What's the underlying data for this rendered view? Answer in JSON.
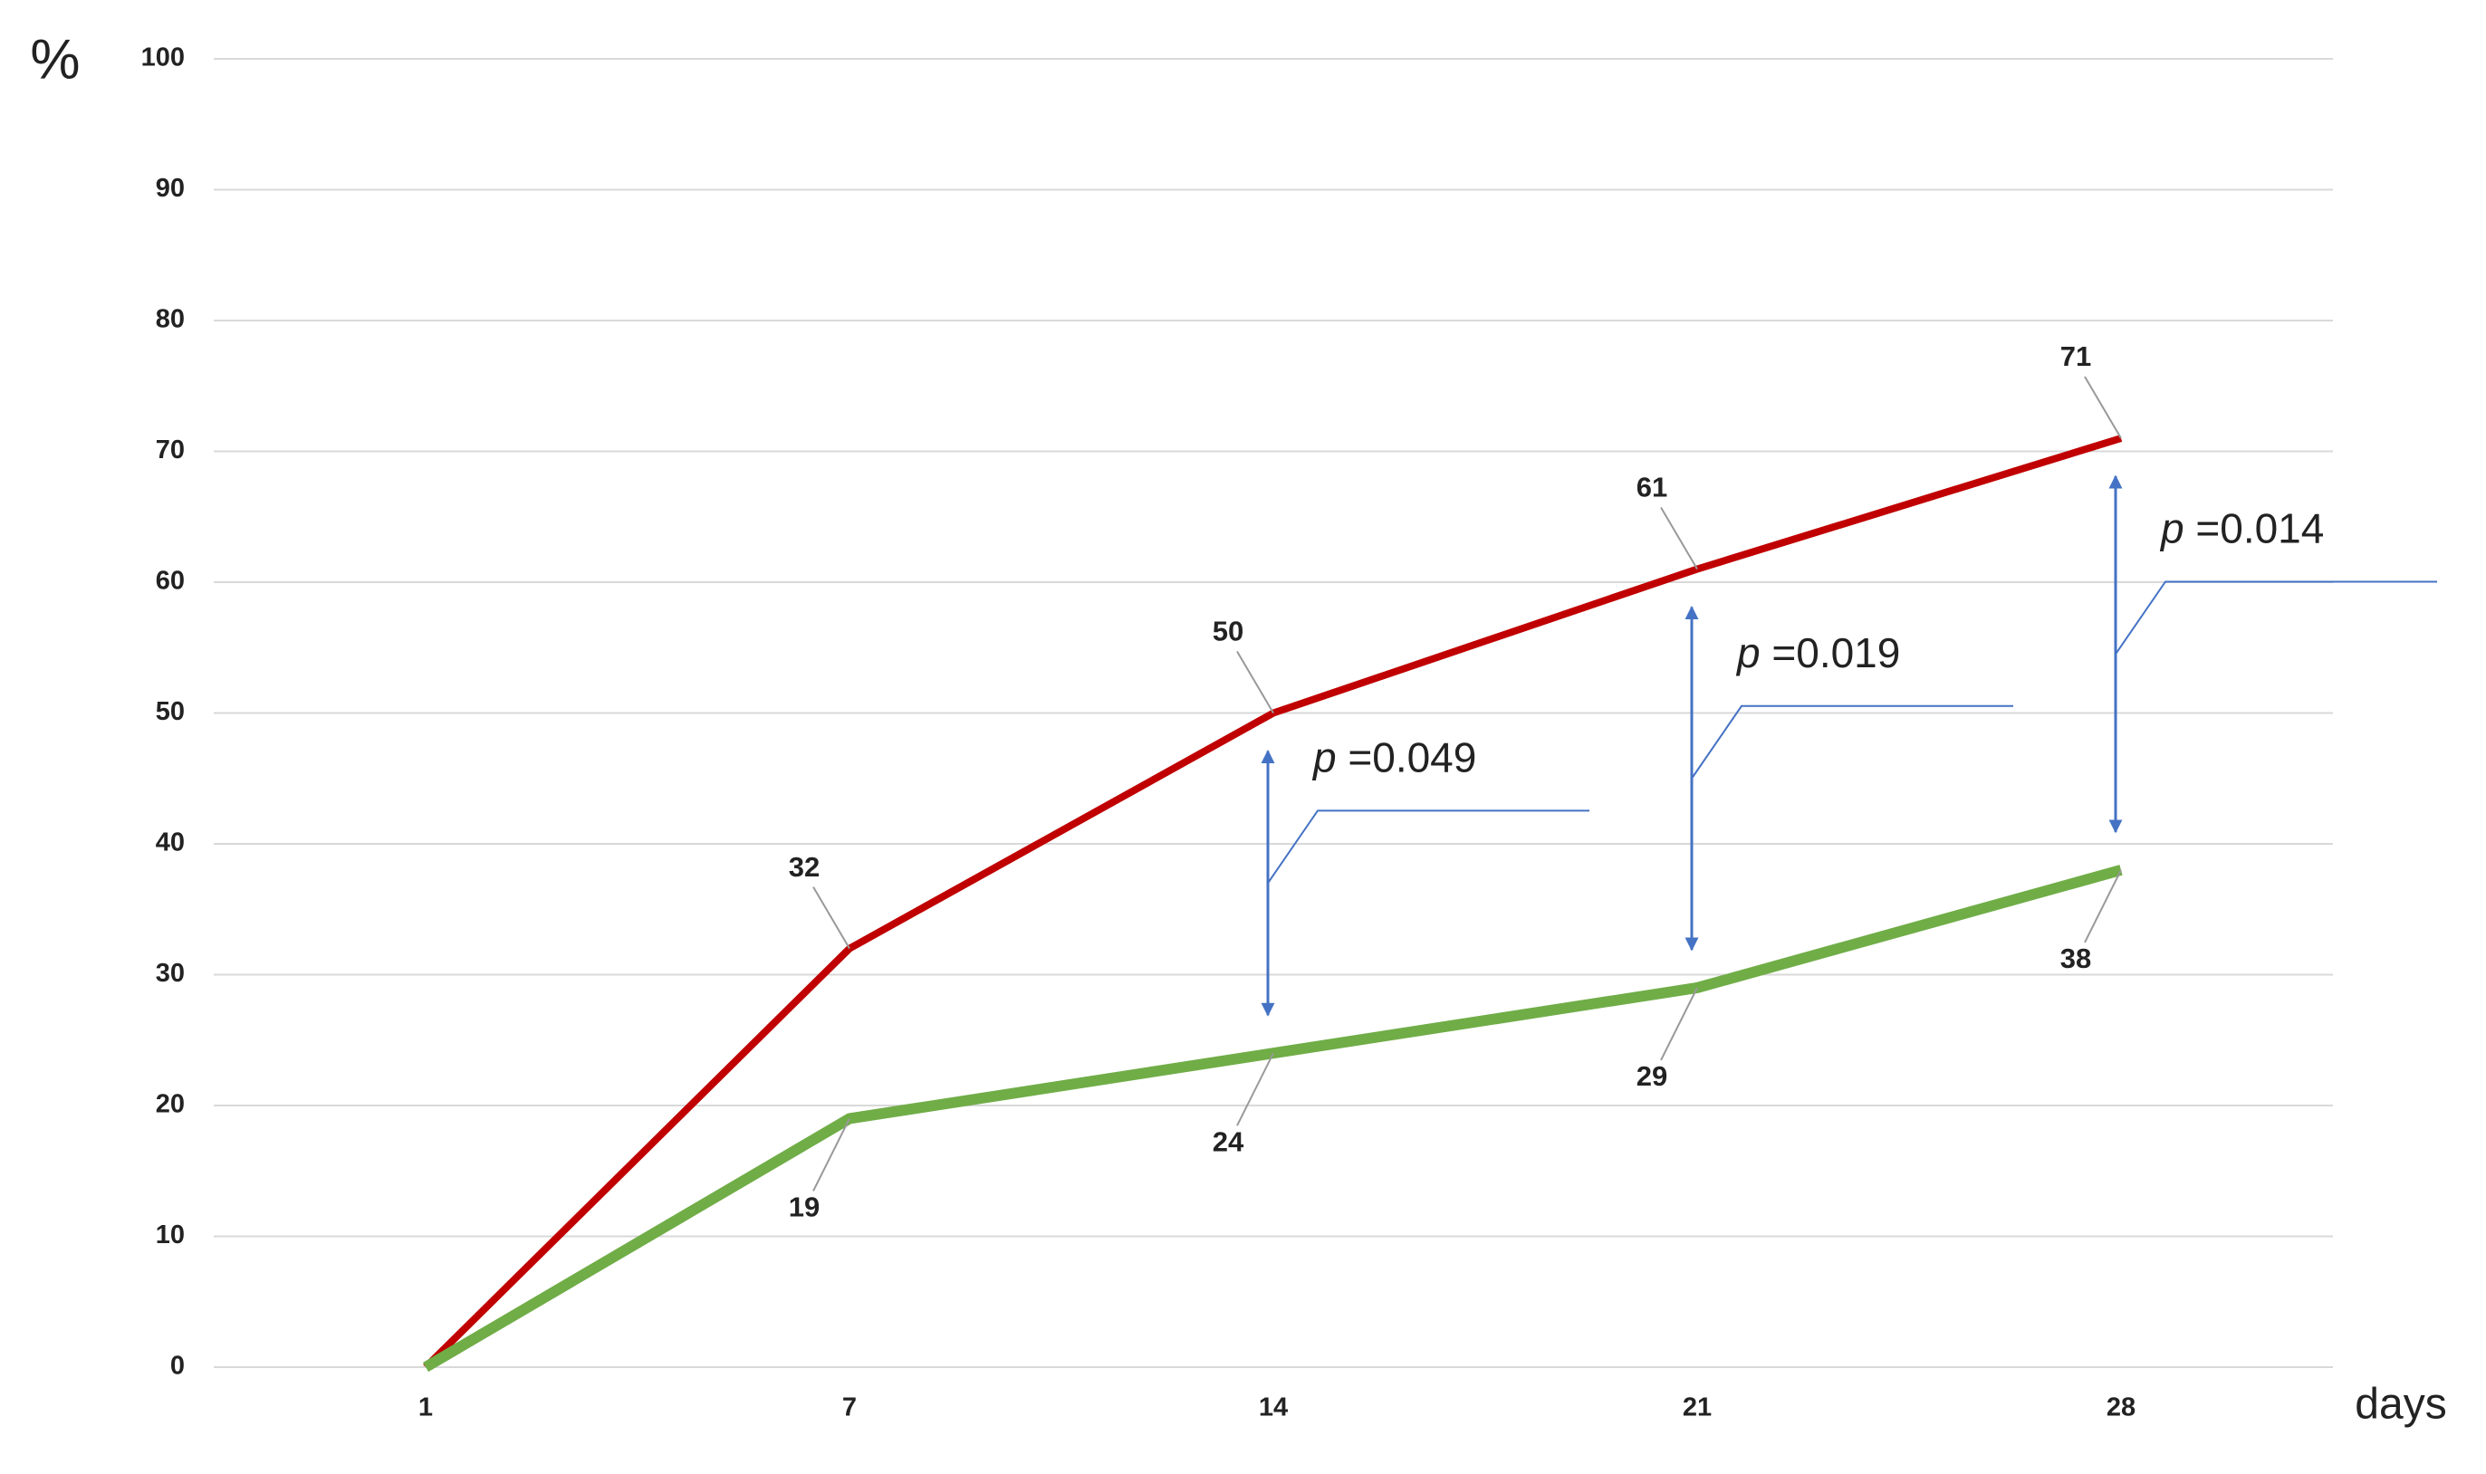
{
  "chart_data": {
    "type": "line",
    "y_label": "%",
    "x_label": "days",
    "categories": [
      "1",
      "7",
      "14",
      "21",
      "28"
    ],
    "series": [
      {
        "color": "#c00000",
        "values": [
          0,
          32,
          50,
          61,
          71
        ]
      },
      {
        "color": "#70ad47",
        "values": [
          0,
          19,
          24,
          29,
          38
        ]
      }
    ],
    "annotations": [
      "p =0.049",
      "p =0.019",
      "p =0.014"
    ],
    "annotation_color": "#4472c4",
    "ylim": [
      0,
      100
    ],
    "yticks": [
      0,
      10,
      20,
      30,
      40,
      50,
      60,
      70,
      80,
      90,
      100
    ],
    "grid": true
  }
}
